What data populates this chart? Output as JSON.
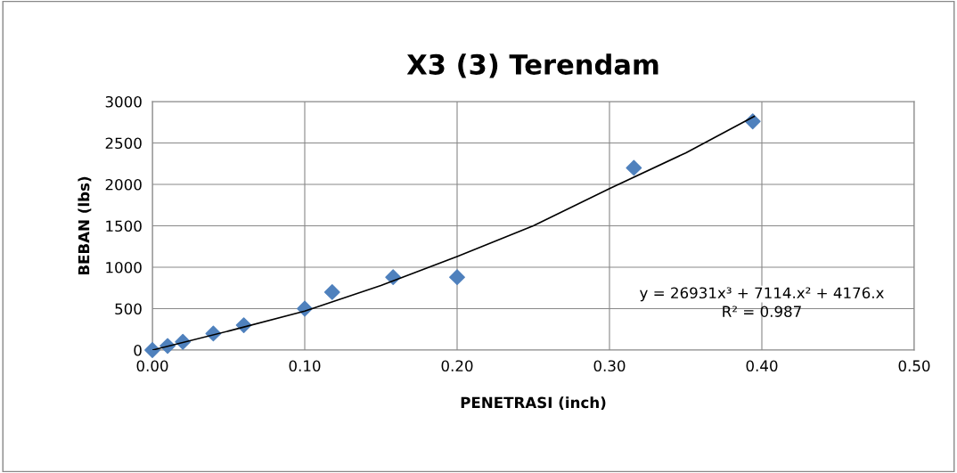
{
  "chart_data": {
    "type": "scatter",
    "title": "X3 (3) Terendam",
    "xlabel": "PENETRASI (inch)",
    "ylabel": "BEBAN (lbs)",
    "xlim": [
      0,
      0.5
    ],
    "xticks": [
      {
        "value": 0,
        "label": "0.00"
      },
      {
        "value": 0.1,
        "label": "0.10"
      },
      {
        "value": 0.2,
        "label": "0.20"
      },
      {
        "value": 0.3,
        "label": "0.30"
      },
      {
        "value": 0.4,
        "label": "0.40"
      },
      {
        "value": 0.5,
        "label": "0.50"
      }
    ],
    "ylim": [
      0,
      3000
    ],
    "yticks": [
      0,
      500,
      1000,
      1500,
      2000,
      2500,
      3000
    ],
    "grid": true,
    "marker": "diamond",
    "series": [
      {
        "color": "#4f81bd",
        "x": [
          0,
          0.01,
          0.02,
          0.04,
          0.06,
          0.1,
          0.118,
          0.158,
          0.2,
          0.316,
          0.394
        ],
        "values": [
          0,
          50,
          100,
          200,
          300,
          500,
          700,
          880,
          880,
          2200,
          2760
        ]
      },
      {
        "type": "line",
        "color": "#000000",
        "marker": "none",
        "line_style": "solid",
        "x": [
          0,
          0.05,
          0.1,
          0.15,
          0.2,
          0.25,
          0.3,
          0.35,
          0.395
        ],
        "values": [
          0,
          230,
          470,
          780,
          1130,
          1500,
          1950,
          2380,
          2820
        ]
      }
    ],
    "annotations": [
      "y = 26931x³ + 7114.x² + 4176.x",
      "R² = 0.987"
    ]
  }
}
